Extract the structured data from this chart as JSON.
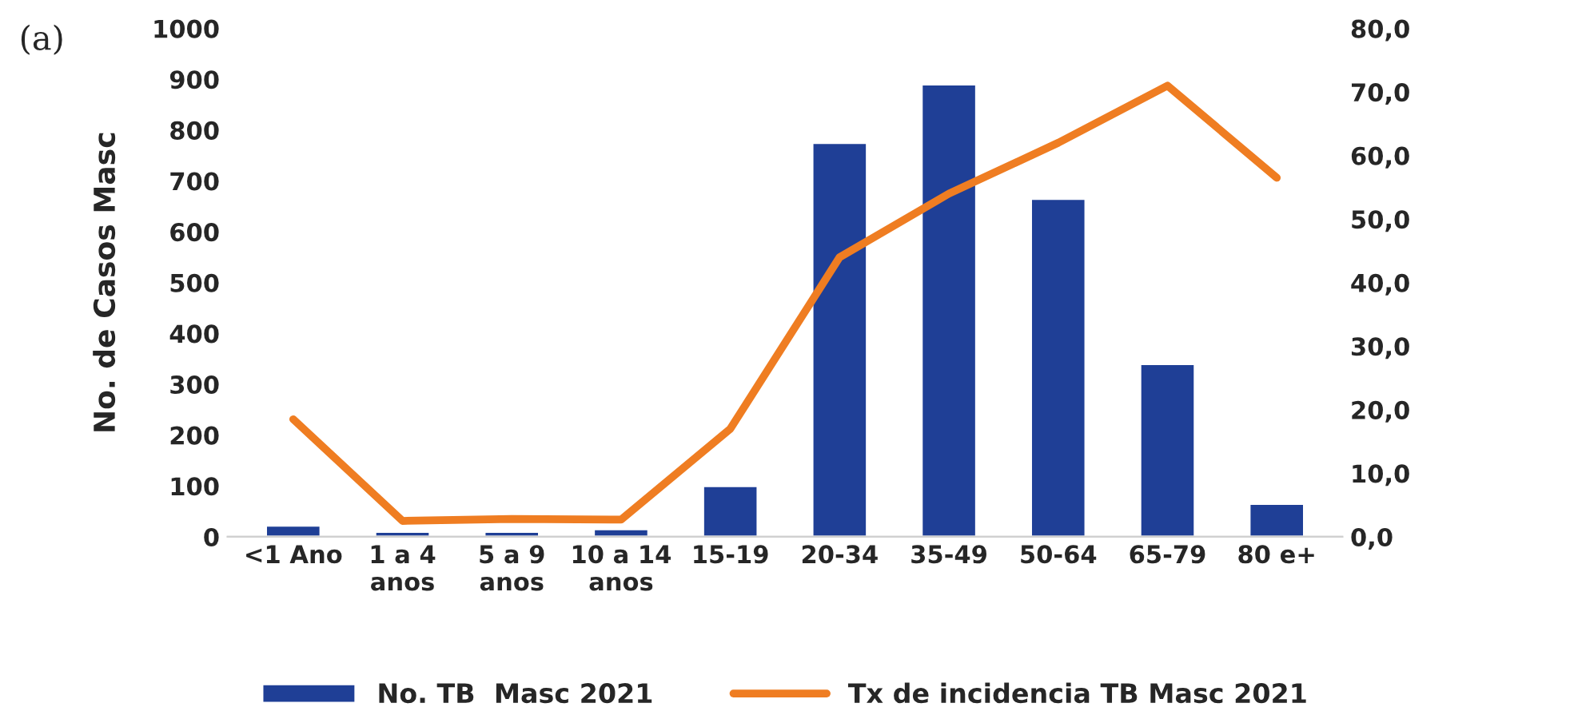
{
  "chart_data": {
    "type": "bar",
    "categories": [
      "<1 Ano",
      "1 a 4\nanos",
      "5 a 9\nanos",
      "10 a 14\nanos",
      "15-19",
      "20-34",
      "35-49",
      "50-64",
      "65-79",
      "80 e+"
    ],
    "series": [
      {
        "name": "No. TB  Masc 2021",
        "color": "#1f3f96",
        "values": [
          22,
          10,
          10,
          15,
          100,
          775,
          890,
          665,
          340,
          65
        ]
      },
      {
        "name": "Tx de incidencia TB Masc 2021",
        "type": "line",
        "axis": "y2",
        "color": "#ef7d22",
        "values": [
          18.5,
          2.5,
          2.8,
          2.7,
          17,
          44,
          54,
          62,
          71,
          56.5
        ]
      }
    ],
    "ylabel": "No. de Casos Masc",
    "ylim": [
      0,
      1000
    ],
    "yticks": [
      0,
      100,
      200,
      300,
      400,
      500,
      600,
      700,
      800,
      900,
      1000
    ],
    "y2lim": [
      0,
      80
    ],
    "y2ticks": [
      {
        "value": 0,
        "label": "0,0"
      },
      {
        "value": 10,
        "label": "10,0"
      },
      {
        "value": 20,
        "label": "20,0"
      },
      {
        "value": 30,
        "label": "30,0"
      },
      {
        "value": 40,
        "label": "40,0"
      },
      {
        "value": 50,
        "label": "50,0"
      },
      {
        "value": 60,
        "label": "60,0"
      },
      {
        "value": 70,
        "label": "70,0"
      },
      {
        "value": 80,
        "label": "80,0"
      }
    ],
    "annotations": [
      "(a)"
    ],
    "legend": "bottom",
    "grid": false
  }
}
